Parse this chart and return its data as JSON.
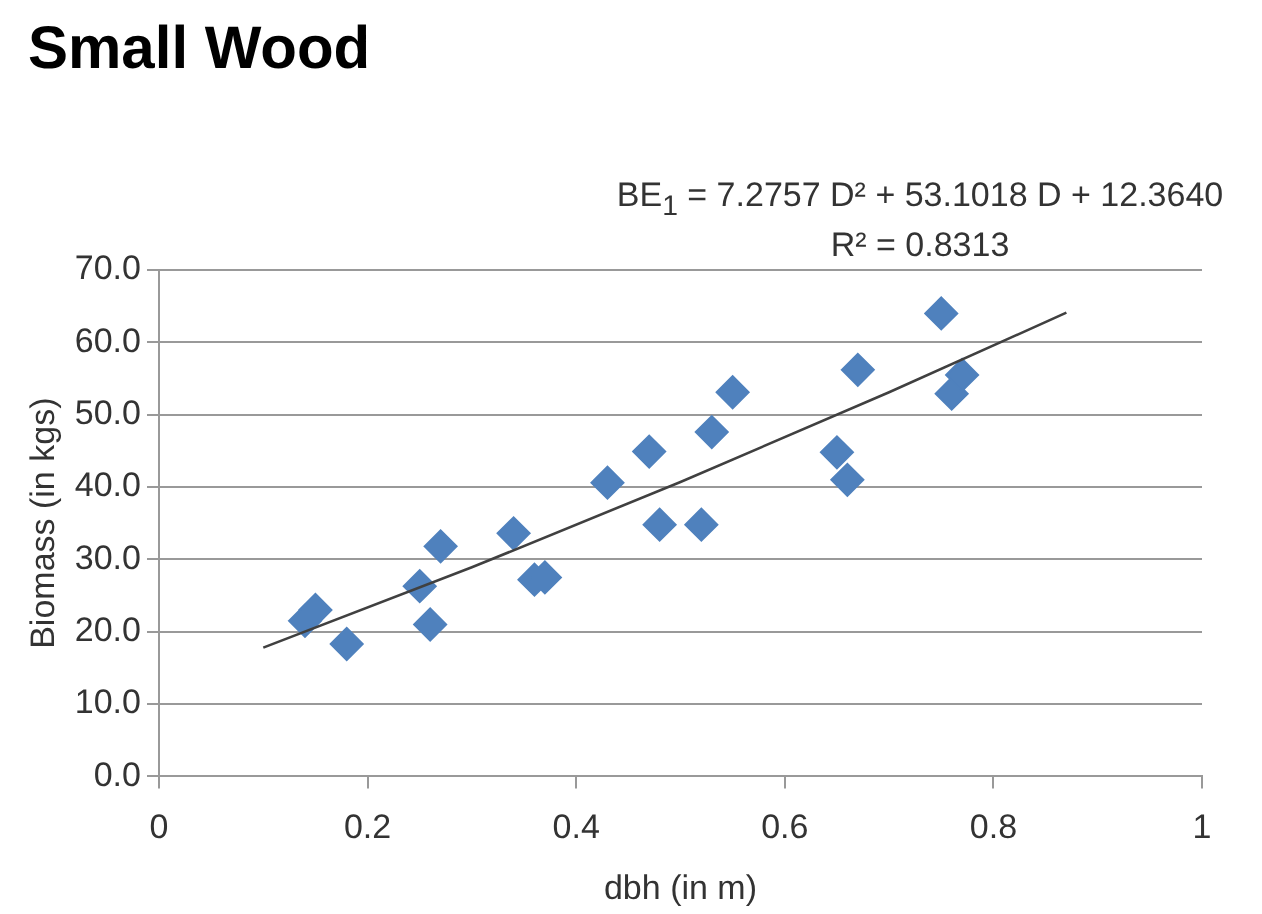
{
  "chart_data": {
    "type": "scatter",
    "title": "Small Wood",
    "xlabel": "dbh (in m)",
    "ylabel": "Biomass (in kgs)",
    "annotations": [
      "BE$_{1}$ = 7.2757 D² + 53.1018 D + 12.3640",
      "R² = 0.8313"
    ],
    "x": [
      0.14,
      0.15,
      0.18,
      0.25,
      0.26,
      0.27,
      0.34,
      0.36,
      0.37,
      0.43,
      0.47,
      0.48,
      0.52,
      0.53,
      0.55,
      0.65,
      0.66,
      0.67,
      0.75,
      0.76,
      0.77
    ],
    "series": [
      {
        "color": "#4f81bd",
        "marker": "diamond",
        "values": [
          21.5,
          23.0,
          18.3,
          26.3,
          21.0,
          31.8,
          33.6,
          27.2,
          27.5,
          40.6,
          44.9,
          34.8,
          34.8,
          47.6,
          53.1,
          44.8,
          41.0,
          56.2,
          64.0,
          52.9,
          55.5
        ]
      },
      {
        "type": "line",
        "color": "#404040",
        "marker": "none",
        "x": [
          0.1,
          0.3,
          0.5,
          0.7,
          0.87
        ],
        "values": [
          17.8,
          28.9,
          40.7,
          53.1,
          64.1
        ]
      }
    ],
    "xlim": [
      0,
      1
    ],
    "xticks": [
      0,
      {
        "value": 0.2,
        "label": "0.2"
      },
      {
        "value": 0.4,
        "label": "0.4"
      },
      {
        "value": 0.6,
        "label": "0.6"
      },
      {
        "value": 0.8,
        "label": "0.8"
      },
      1
    ],
    "ylim": [
      0,
      70
    ],
    "yticks": [
      {
        "value": 0,
        "label": "0.0"
      },
      {
        "value": 10,
        "label": "10.0"
      },
      {
        "value": 20,
        "label": "20.0"
      },
      {
        "value": 30,
        "label": "30.0"
      },
      {
        "value": 40,
        "label": "40.0"
      },
      {
        "value": 50,
        "label": "50.0"
      },
      {
        "value": 60,
        "label": "60.0"
      },
      {
        "value": 70,
        "label": "70.0"
      }
    ],
    "grid": "y",
    "legend": false
  }
}
